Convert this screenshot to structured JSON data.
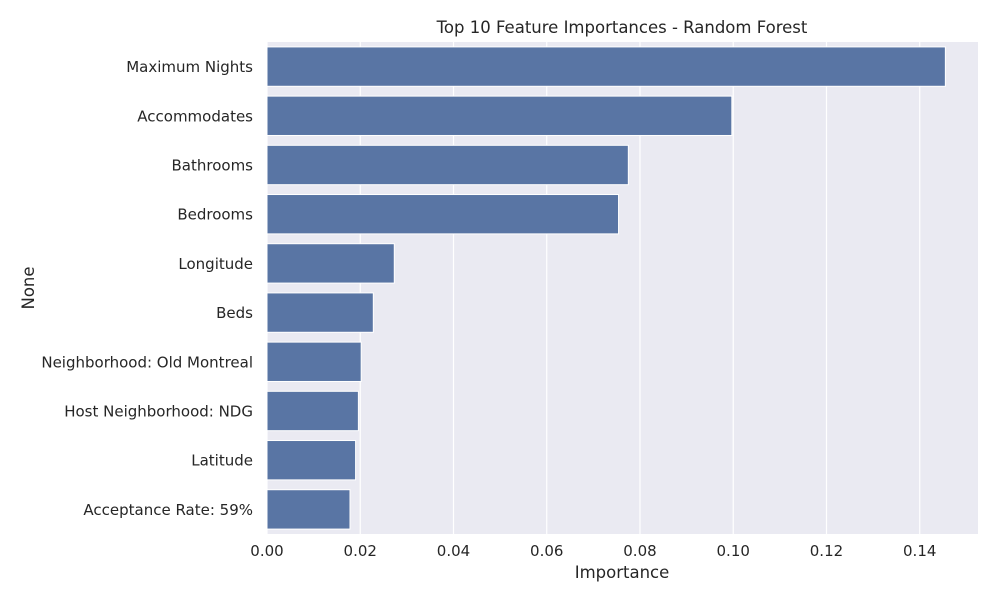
{
  "chart_data": {
    "type": "bar",
    "orientation": "horizontal",
    "title": "Top 10 Feature Importances - Random Forest",
    "xlabel": "Importance",
    "ylabel": "None",
    "categories": [
      "Maximum Nights",
      "Accommodates",
      "Bathrooms",
      "Bedrooms",
      "Longitude",
      "Beds",
      "Neighborhood: Old Montreal",
      "Host Neighborhood: NDG",
      "Latitude",
      "Acceptance Rate: 59%"
    ],
    "values": [
      0.1455,
      0.0997,
      0.0775,
      0.0754,
      0.0273,
      0.0228,
      0.0202,
      0.0196,
      0.019,
      0.0178
    ],
    "xlim": [
      0,
      0.1525
    ],
    "xticks": [
      "0.00",
      "0.02",
      "0.04",
      "0.06",
      "0.08",
      "0.10",
      "0.12",
      "0.14"
    ],
    "grid": true,
    "colors": {
      "bar": "#5975a4",
      "background": "#eaeaf2",
      "grid": "#ffffff",
      "text": "#262626"
    }
  }
}
